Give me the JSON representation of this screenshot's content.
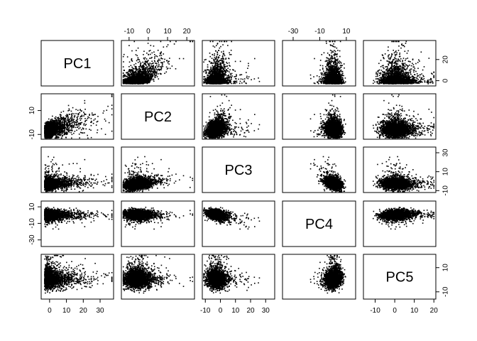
{
  "chart_data": {
    "type": "scatter",
    "variables": [
      "PC1",
      "PC2",
      "PC3",
      "PC4",
      "PC5"
    ],
    "axis_ranges": {
      "PC1": [
        -5,
        38
      ],
      "PC2": [
        -14,
        24
      ],
      "PC3": [
        -12,
        36
      ],
      "PC4": [
        -38,
        17
      ],
      "PC5": [
        -16,
        21
      ]
    },
    "axis_ticks": {
      "PC1": [
        0,
        10,
        20,
        30
      ],
      "PC2": [
        -10,
        0,
        10,
        20
      ],
      "PC3": [
        -10,
        0,
        10,
        20,
        30
      ],
      "PC4": [
        -30,
        -10,
        10
      ],
      "PC5": [
        -10,
        0,
        10,
        20
      ]
    },
    "tick_labels": {
      "top": {
        "1": [
          "-10",
          "0",
          "10",
          "20"
        ],
        "3": [
          "-30",
          "-10",
          "10"
        ]
      },
      "bottom": {
        "0": [
          "0",
          "10",
          "20",
          "30"
        ],
        "2": [
          "-10",
          "0",
          "10",
          "20",
          "30"
        ],
        "4": [
          "-10",
          "0",
          "10",
          "20"
        ]
      },
      "left": {
        "1": [
          "-10",
          "10"
        ],
        "3": [
          "-30",
          "-10",
          "10"
        ]
      },
      "right": {
        "0": [
          "0",
          "20"
        ],
        "2": [
          "-10",
          "10",
          "30"
        ],
        "4": [
          "-10",
          "10"
        ]
      }
    },
    "point_color": "#000000",
    "grid": false,
    "legend": "none",
    "title": "",
    "xlabel": "",
    "ylabel": ""
  }
}
